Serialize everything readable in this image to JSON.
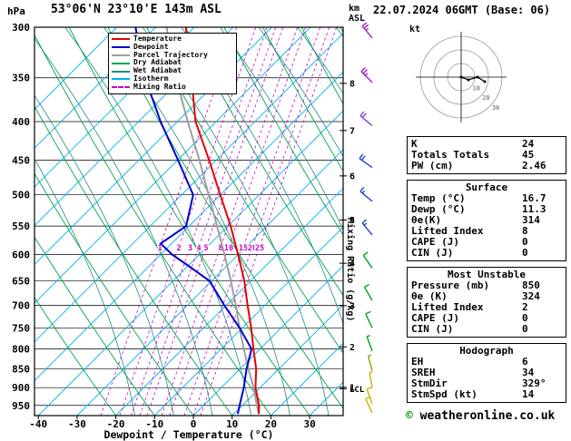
{
  "header": {
    "pressure_unit": "hPa",
    "station": "53°06'N 23°10'E 143m ASL",
    "datetime": "22.07.2024 06GMT (Base: 06)",
    "km_line1": "km",
    "km_line2": "ASL"
  },
  "legend": [
    {
      "label": "Temperature",
      "color": "#e60000"
    },
    {
      "label": "Dewpoint",
      "color": "#0000cd"
    },
    {
      "label": "Parcel Trajectory",
      "color": "#9e9e9e"
    },
    {
      "label": "Dry Adiabat",
      "color": "#00a550"
    },
    {
      "label": "Wet Adiabat",
      "color": "#1e8e7e"
    },
    {
      "label": "Isotherm",
      "color": "#00b2ee"
    },
    {
      "label": "Mixing Ratio",
      "color": "#cc00cc"
    }
  ],
  "axes": {
    "pressure_ticks": [
      300,
      350,
      400,
      450,
      500,
      550,
      600,
      650,
      700,
      750,
      800,
      850,
      900,
      950
    ],
    "temp_ticks": [
      -40,
      -30,
      -20,
      -10,
      0,
      10,
      20,
      30
    ],
    "km_ticks": [
      8,
      7,
      6,
      5,
      4,
      3,
      2,
      1
    ],
    "mixing_ratio_ticks": [
      "1",
      "2",
      "3",
      "4",
      "5",
      "8",
      "10",
      "15",
      "20",
      "25"
    ],
    "xlabel": "Dewpoint / Temperature (°C)",
    "mixing_label": "Mixing Ratio (g/kg)",
    "lcl_label": "LCL"
  },
  "hodograph_panel": {
    "kt_label": "kt",
    "ring_labels": [
      "10",
      "20",
      "30"
    ]
  },
  "indices": {
    "top": {
      "rows": [
        {
          "label": "K",
          "value": "24"
        },
        {
          "label": "Totals Totals",
          "value": "45"
        },
        {
          "label": "PW (cm)",
          "value": "2.46"
        }
      ]
    },
    "surface": {
      "title": "Surface",
      "rows": [
        {
          "label": "Temp (°C)",
          "value": "16.7"
        },
        {
          "label": "Dewp (°C)",
          "value": "11.3"
        },
        {
          "label": "θe(K)",
          "value": "314"
        },
        {
          "label": "Lifted Index",
          "value": "8"
        },
        {
          "label": "CAPE (J)",
          "value": "0"
        },
        {
          "label": "CIN (J)",
          "value": "0"
        }
      ]
    },
    "most_unstable": {
      "title": "Most Unstable",
      "rows": [
        {
          "label": "Pressure (mb)",
          "value": "850"
        },
        {
          "label": "θe (K)",
          "value": "324"
        },
        {
          "label": "Lifted Index",
          "value": "2"
        },
        {
          "label": "CAPE (J)",
          "value": "0"
        },
        {
          "label": "CIN (J)",
          "value": "0"
        }
      ]
    },
    "hodograph": {
      "title": "Hodograph",
      "rows": [
        {
          "label": "EH",
          "value": "6"
        },
        {
          "label": "SREH",
          "value": "34"
        },
        {
          "label": "StmDir",
          "value": "329°"
        },
        {
          "label": "StmSpd (kt)",
          "value": "14"
        }
      ]
    }
  },
  "wind_barbs": [
    {
      "p": 310,
      "dir": 320,
      "spd": 25,
      "color": "#a020c0"
    },
    {
      "p": 355,
      "dir": 315,
      "spd": 25,
      "color": "#a020c0"
    },
    {
      "p": 405,
      "dir": 310,
      "spd": 20,
      "color": "#8040d0"
    },
    {
      "p": 460,
      "dir": 305,
      "spd": 20,
      "color": "#2040d0"
    },
    {
      "p": 510,
      "dir": 310,
      "spd": 15,
      "color": "#2040d0"
    },
    {
      "p": 565,
      "dir": 320,
      "spd": 15,
      "color": "#2040d0"
    },
    {
      "p": 625,
      "dir": 325,
      "spd": 10,
      "color": "#00a020"
    },
    {
      "p": 690,
      "dir": 330,
      "spd": 10,
      "color": "#00a020"
    },
    {
      "p": 750,
      "dir": 335,
      "spd": 10,
      "color": "#00a020"
    },
    {
      "p": 805,
      "dir": 340,
      "spd": 5,
      "color": "#00a020"
    },
    {
      "p": 855,
      "dir": 345,
      "spd": 5,
      "color": "#80a800"
    },
    {
      "p": 900,
      "dir": 350,
      "spd": 5,
      "color": "#c8b400"
    },
    {
      "p": 945,
      "dir": 340,
      "spd": 10,
      "color": "#c8b400"
    },
    {
      "p": 972,
      "dir": 335,
      "spd": 10,
      "color": "#c8b400"
    }
  ],
  "chart_data": {
    "type": "line",
    "diagram": "skew-t log-p sounding",
    "title": "53°06'N 23°10'E 143m ASL — 22.07.2024 06GMT (Base: 06)",
    "xlabel": "Dewpoint / Temperature (°C)",
    "ylabel": "hPa",
    "y_scale": "log-pressure, inverted",
    "xlim": [
      -40,
      40
    ],
    "ylim": [
      980,
      300
    ],
    "grid": "isotherms, dry adiabats, wet adiabats, mixing-ratio lines",
    "legend_position": "top-left inset box",
    "lcl_pressure_hpa": 903,
    "series": [
      {
        "name": "Temperature",
        "units": "°C vs hPa",
        "points": [
          [
            975,
            16.7
          ],
          [
            950,
            16
          ],
          [
            900,
            13.5
          ],
          [
            850,
            12
          ],
          [
            800,
            9.5
          ],
          [
            750,
            7
          ],
          [
            700,
            4
          ],
          [
            650,
            1
          ],
          [
            600,
            -3
          ],
          [
            550,
            -7.5
          ],
          [
            500,
            -13
          ],
          [
            450,
            -19
          ],
          [
            400,
            -26
          ],
          [
            350,
            -31
          ],
          [
            300,
            -37
          ]
        ]
      },
      {
        "name": "Dewpoint",
        "units": "°C vs hPa",
        "points": [
          [
            975,
            11.3
          ],
          [
            950,
            11
          ],
          [
            900,
            10.5
          ],
          [
            850,
            9.5
          ],
          [
            800,
            9
          ],
          [
            750,
            4
          ],
          [
            700,
            -2
          ],
          [
            650,
            -8
          ],
          [
            620,
            -15
          ],
          [
            600,
            -20
          ],
          [
            580,
            -24
          ],
          [
            550,
            -19
          ],
          [
            500,
            -20
          ],
          [
            450,
            -27
          ],
          [
            400,
            -35
          ],
          [
            350,
            -43
          ],
          [
            300,
            -50
          ]
        ]
      },
      {
        "name": "Parcel Trajectory",
        "units": "°C vs hPa",
        "points": [
          [
            975,
            16.7
          ],
          [
            950,
            15.5
          ],
          [
            900,
            13
          ],
          [
            850,
            10
          ],
          [
            800,
            7
          ],
          [
            750,
            4
          ],
          [
            700,
            1
          ],
          [
            650,
            -2.5
          ],
          [
            600,
            -6.5
          ],
          [
            550,
            -11
          ],
          [
            500,
            -16
          ],
          [
            450,
            -21.5
          ],
          [
            400,
            -28
          ],
          [
            350,
            -35
          ],
          [
            300,
            -42
          ]
        ]
      }
    ]
  },
  "footer": {
    "symbol": "©",
    "text": "weatheronline.co.uk"
  }
}
